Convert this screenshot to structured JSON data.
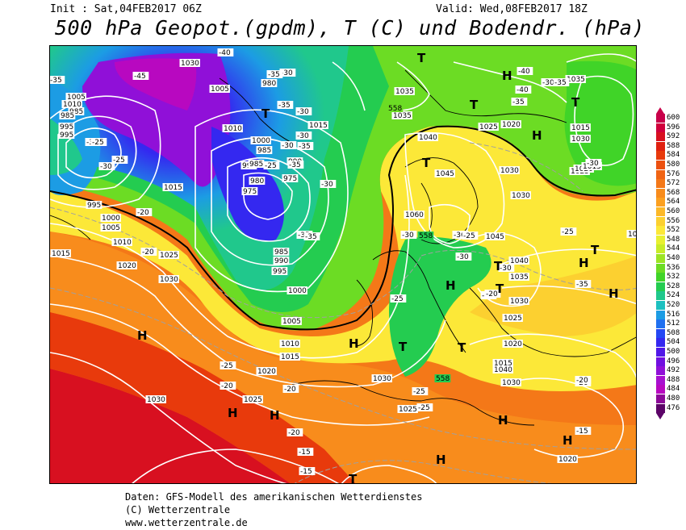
{
  "header": {
    "init": "Init : Sat,04FEB2017 06Z",
    "valid": "Valid: Wed,08FEB2017 18Z",
    "title": "500 hPa Geopot.(gpdm), T (C) und Bodendr. (hPa)"
  },
  "footer": {
    "line1": "Daten: GFS-Modell des amerikanischen Wetterdienstes",
    "line2": "(C) Wetterzentrale",
    "line3": "www.wetterzentrale.de"
  },
  "colors": {
    "background": "#ffffff",
    "isobar": "#ffffff",
    "coastline": "#000000"
  },
  "scale": [
    {
      "value": "600",
      "color": "#c8004a"
    },
    {
      "value": "596",
      "color": "#d0003c"
    },
    {
      "value": "592",
      "color": "#d81020"
    },
    {
      "value": "588",
      "color": "#e02010"
    },
    {
      "value": "584",
      "color": "#e83a0c"
    },
    {
      "value": "580",
      "color": "#ec5010"
    },
    {
      "value": "576",
      "color": "#f06414"
    },
    {
      "value": "572",
      "color": "#f47818"
    },
    {
      "value": "568",
      "color": "#f88c1c"
    },
    {
      "value": "564",
      "color": "#fca020"
    },
    {
      "value": "560",
      "color": "#fcb828"
    },
    {
      "value": "556",
      "color": "#fcd030"
    },
    {
      "value": "552",
      "color": "#fce838"
    },
    {
      "value": "548",
      "color": "#e8f030"
    },
    {
      "value": "544",
      "color": "#c8ec28"
    },
    {
      "value": "540",
      "color": "#9ce424"
    },
    {
      "value": "536",
      "color": "#6cdc24"
    },
    {
      "value": "532",
      "color": "#40d428"
    },
    {
      "value": "528",
      "color": "#24cc50"
    },
    {
      "value": "524",
      "color": "#20c88c"
    },
    {
      "value": "520",
      "color": "#1cc0c0"
    },
    {
      "value": "516",
      "color": "#1c9ce4"
    },
    {
      "value": "512",
      "color": "#2070f0"
    },
    {
      "value": "508",
      "color": "#2448f4"
    },
    {
      "value": "504",
      "color": "#3428f0"
    },
    {
      "value": "500",
      "color": "#5018e8"
    },
    {
      "value": "496",
      "color": "#7010e0"
    },
    {
      "value": "492",
      "color": "#9010d8"
    },
    {
      "value": "488",
      "color": "#a810d0"
    },
    {
      "value": "484",
      "color": "#b808c0"
    },
    {
      "value": "480",
      "color": "#8c0898"
    },
    {
      "value": "476",
      "color": "#5c0468"
    }
  ],
  "pressure_labels": [
    "1030",
    "1005",
    "1010",
    "1000",
    "995",
    "985",
    "980",
    "1005",
    "1010",
    "985",
    "985",
    "995",
    "995",
    "1015",
    "990",
    "985",
    "975",
    "980",
    "975",
    "1015",
    "995",
    "1000",
    "1005",
    "1010",
    "1015",
    "1020",
    "1025",
    "1030",
    "1000",
    "985",
    "990",
    "995",
    "1005",
    "1010",
    "1015",
    "1020",
    "1030",
    "1025",
    "1030",
    "1035",
    "1040",
    "1045",
    "1060",
    "1045",
    "1040",
    "1035",
    "1030",
    "1025",
    "1020",
    "1035",
    "1030",
    "1025",
    "1020",
    "1015",
    "1030",
    "1025",
    "1035",
    "1030",
    "1025",
    "1020",
    "1015",
    "1015",
    "1040",
    "1030",
    "1020",
    "1025"
  ],
  "temp_labels": [
    "-40",
    "-45",
    "-35",
    "-30",
    "-35",
    "-35",
    "-30",
    "-30",
    "-35",
    "-30",
    "-25",
    "-35",
    "-30",
    "-35",
    "-35",
    "-40",
    "-40",
    "-35",
    "-30",
    "-35",
    "-30",
    "-25",
    "-20",
    "-25",
    "-30",
    "-25",
    "-30",
    "-30",
    "-30",
    "-30",
    "-25",
    "-25",
    "-30",
    "-25",
    "-35",
    "-20",
    "-25",
    "-20",
    "-20",
    "-25",
    "-20",
    "-15",
    "-15",
    "-15",
    "-20",
    "-20",
    "-25",
    "-20"
  ],
  "centers_h": [
    "H",
    "H",
    "H",
    "H",
    "H",
    "H",
    "H",
    "H",
    "H",
    "H",
    "H",
    "H"
  ],
  "centers_t": [
    "T",
    "T",
    "T",
    "T",
    "T",
    "T",
    "T",
    "T",
    "T",
    "T",
    "T"
  ],
  "contour_label_558": "558"
}
